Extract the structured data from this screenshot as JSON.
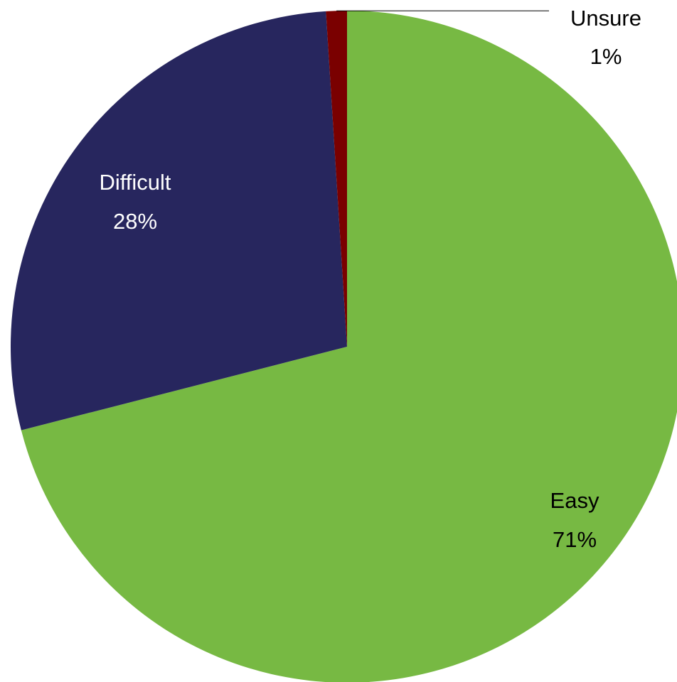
{
  "chart_data": {
    "type": "pie",
    "title": "",
    "slices": [
      {
        "name": "Easy",
        "value": 71,
        "percent_label": "71%",
        "color": "#77B943"
      },
      {
        "name": "Difficult",
        "value": 28,
        "percent_label": "28%",
        "color": "#27265E"
      },
      {
        "name": "Unsure",
        "value": 1,
        "percent_label": "1%",
        "color": "#7A0000"
      }
    ],
    "start_angle": "12 o'clock",
    "direction": "clockwise",
    "legend": "none",
    "data_labels": "category name and percentage"
  }
}
